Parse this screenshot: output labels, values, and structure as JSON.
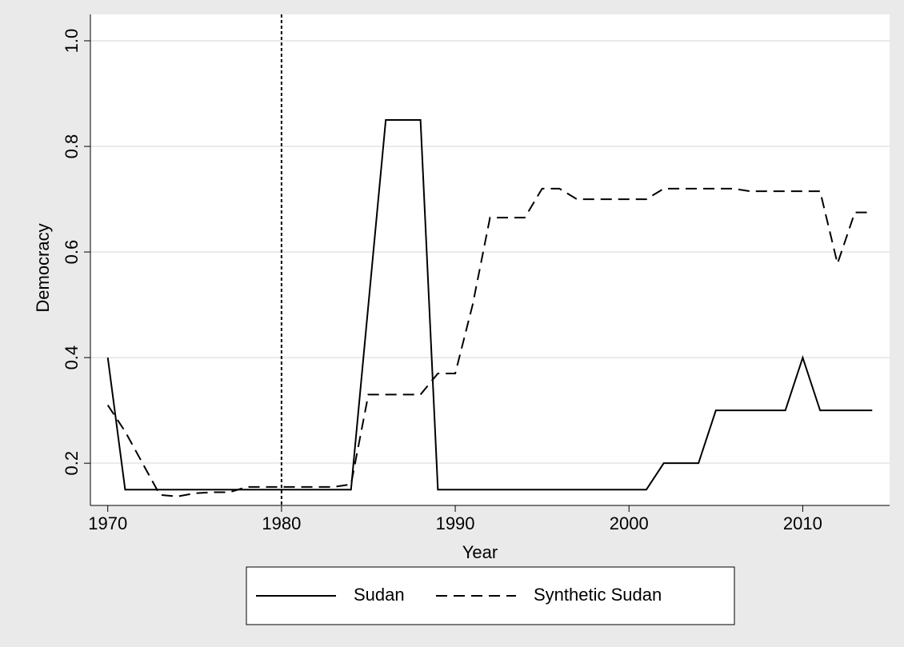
{
  "chart_data": {
    "type": "line",
    "x_label": "Year",
    "y_label": "Democracy",
    "x": [
      1970,
      1971,
      1972,
      1973,
      1974,
      1975,
      1976,
      1977,
      1978,
      1979,
      1980,
      1981,
      1982,
      1983,
      1984,
      1985,
      1986,
      1987,
      1988,
      1989,
      1990,
      1991,
      1992,
      1993,
      1994,
      1995,
      1996,
      1997,
      1998,
      1999,
      2000,
      2001,
      2002,
      2003,
      2004,
      2005,
      2006,
      2007,
      2008,
      2009,
      2010,
      2011,
      2012,
      2013,
      2014
    ],
    "series": [
      {
        "name": "Sudan",
        "color": "#000000",
        "line_style": "solid",
        "values": [
          0.4,
          0.15,
          0.15,
          0.15,
          0.15,
          0.15,
          0.15,
          0.15,
          0.15,
          0.15,
          0.15,
          0.15,
          0.15,
          0.15,
          0.15,
          0.5,
          0.85,
          0.85,
          0.85,
          0.15,
          0.15,
          0.15,
          0.15,
          0.15,
          0.15,
          0.15,
          0.15,
          0.15,
          0.15,
          0.15,
          0.15,
          0.15,
          0.2,
          0.2,
          0.2,
          0.3,
          0.3,
          0.3,
          0.3,
          0.3,
          0.4,
          0.3,
          0.3,
          0.3,
          0.3
        ]
      },
      {
        "name": "Synthetic Sudan",
        "color": "#000000",
        "line_style": "dashed",
        "values": [
          0.31,
          0.26,
          0.2,
          0.14,
          0.137,
          0.143,
          0.145,
          0.145,
          0.155,
          0.155,
          0.155,
          0.155,
          0.155,
          0.155,
          0.16,
          0.33,
          0.33,
          0.33,
          0.33,
          0.37,
          0.37,
          0.5,
          0.665,
          0.665,
          0.665,
          0.72,
          0.72,
          0.7,
          0.7,
          0.7,
          0.7,
          0.7,
          0.72,
          0.72,
          0.72,
          0.72,
          0.72,
          0.715,
          0.715,
          0.715,
          0.715,
          0.715,
          0.578,
          0.675,
          0.675
        ]
      }
    ],
    "xline": 1980,
    "xlim": [
      1969,
      2015
    ],
    "ylim": [
      0.12,
      1.05
    ],
    "xticks": [
      1970,
      1980,
      1990,
      2000,
      2010
    ],
    "yticks": [
      0.2,
      0.4,
      0.6,
      0.8,
      {
        "value": 1,
        "label": "1.0"
      }
    ],
    "grid": true,
    "legend": "bottom"
  }
}
